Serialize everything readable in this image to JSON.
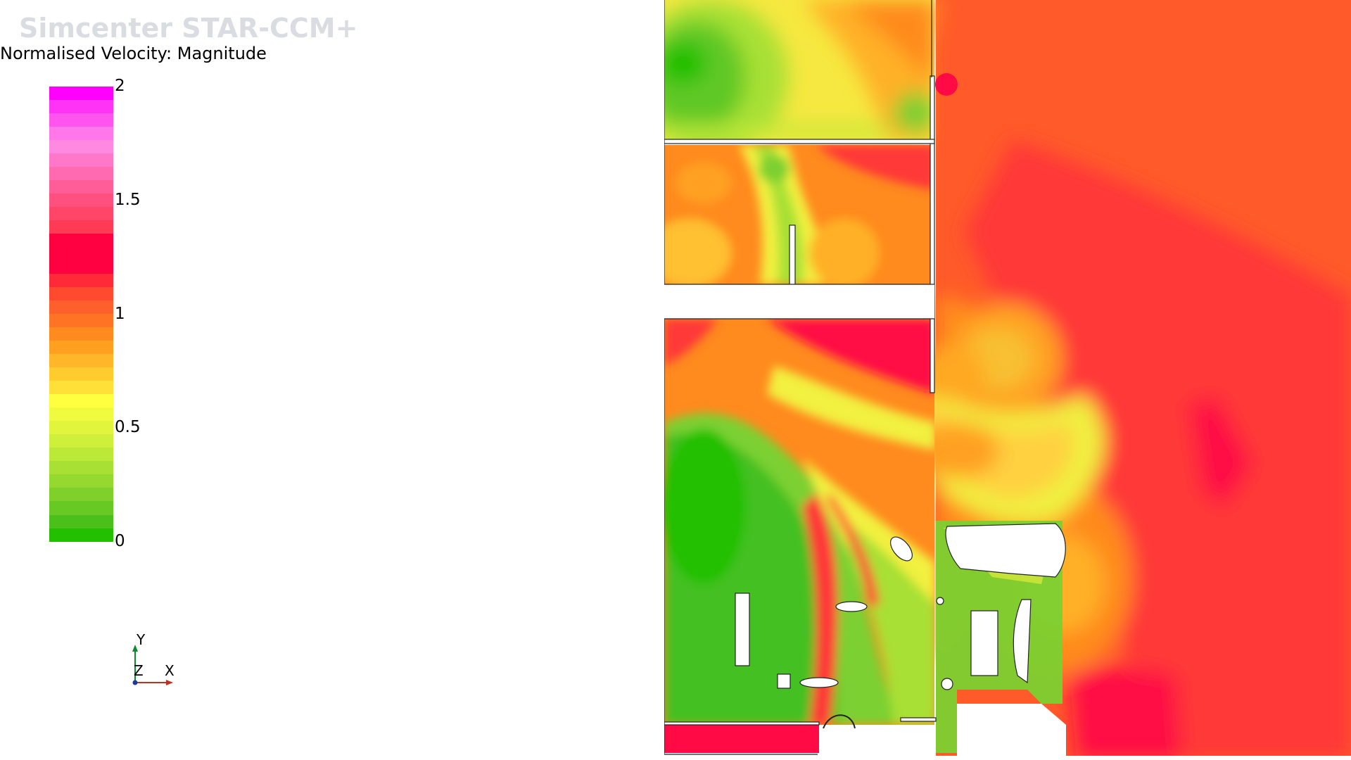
{
  "app": {
    "brand": "Simcenter STAR-CCM+"
  },
  "scalar_bar": {
    "title": "Normalised Velocity: Magnitude",
    "ticks": [
      {
        "label": "2",
        "value": 2
      },
      {
        "label": "1.5",
        "value": 1.5
      },
      {
        "label": "1",
        "value": 1
      },
      {
        "label": "0.5",
        "value": 0.5
      },
      {
        "label": "0",
        "value": 0
      }
    ],
    "range": [
      0,
      2
    ],
    "colors_top_to_bottom": [
      "#ff00ff",
      "#ff33f5",
      "#ff55ee",
      "#ff77e8",
      "#ff88e0",
      "#ff77c8",
      "#ff6ab0",
      "#ff5d98",
      "#ff5080",
      "#ff4568",
      "#ff3a55",
      "#ff0040",
      "#ff0040",
      "#ff0040",
      "#ff2a38",
      "#ff4a30",
      "#ff5f2a",
      "#ff7424",
      "#ff8a1e",
      "#ffa020",
      "#ffb628",
      "#ffcc30",
      "#ffe038",
      "#ffff40",
      "#f0fa3e",
      "#e0f53c",
      "#cff03a",
      "#bce838",
      "#a8e034",
      "#94d830",
      "#80d02c",
      "#68c824",
      "#4cc01a",
      "#22c000"
    ]
  },
  "triad": {
    "y": "Y",
    "z": "Z",
    "x": "X"
  },
  "colors": {
    "green": "#22c000",
    "yellow": "#f2f040",
    "orange": "#ff8c1e",
    "red": "#ff3535",
    "crimson": "#ff0040",
    "bg": "#ffffff"
  }
}
